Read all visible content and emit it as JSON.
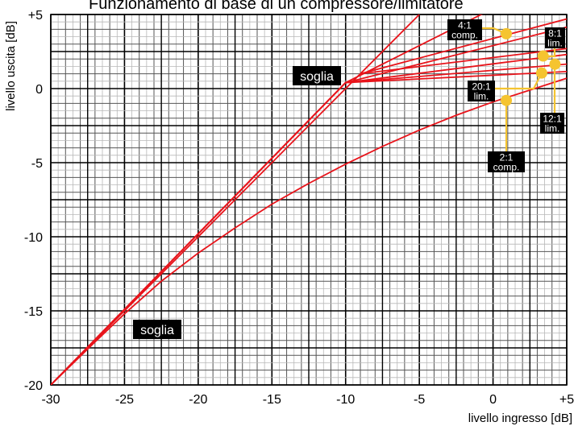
{
  "chart_data": {
    "type": "line",
    "title": "",
    "xlabel": "livello ingresso [dB]",
    "ylabel": "livello uscita [dB]",
    "xlim": [
      -30,
      5
    ],
    "ylim": [
      -20,
      5
    ],
    "grid": true,
    "x_ticks": [
      {
        "value": -30,
        "label": "-30"
      },
      {
        "value": -25,
        "label": "-25"
      },
      {
        "value": -20,
        "label": "-20"
      },
      {
        "value": -15,
        "label": "-15"
      },
      {
        "value": -10,
        "label": "-10"
      },
      {
        "value": -5,
        "label": "-5"
      },
      {
        "value": 0,
        "label": "0"
      },
      {
        "value": 5,
        "label": "+5"
      }
    ],
    "y_ticks": [
      {
        "value": -20,
        "label": "-20"
      },
      {
        "value": -15,
        "label": "-15"
      },
      {
        "value": -10,
        "label": "-10"
      },
      {
        "value": -5,
        "label": "-5"
      },
      {
        "value": 0,
        "label": "0"
      },
      {
        "value": 5,
        "label": "+5"
      }
    ],
    "line_color": "#e8141b",
    "marker_color": "#f5c430",
    "series": [
      {
        "id": "linear",
        "points": [
          [
            -30,
            -20
          ],
          [
            -5,
            5
          ]
        ]
      },
      {
        "id": "2:1 soft",
        "points": [
          [
            -30,
            -20
          ],
          [
            -27,
            -17.1
          ],
          [
            -25,
            -15.2
          ],
          [
            -22.5,
            -13
          ],
          [
            -20,
            -11.1
          ],
          [
            -17.5,
            -9.4
          ],
          [
            -15,
            -7.8
          ],
          [
            -12.5,
            -6.4
          ],
          [
            -10,
            -5.1
          ],
          [
            -7.5,
            -3.9
          ],
          [
            -5,
            -2.8
          ],
          [
            -2.5,
            -1.8
          ],
          [
            0,
            -0.9
          ],
          [
            2.5,
            -0.1
          ],
          [
            5,
            0.7
          ]
        ]
      },
      {
        "id": "2:1",
        "points": [
          [
            -30,
            -20
          ],
          [
            -10,
            0.4
          ],
          [
            5,
            7.9
          ]
        ]
      },
      {
        "id": "4:1",
        "points": [
          [
            -30,
            -20
          ],
          [
            -10,
            0.4
          ],
          [
            5,
            4.15
          ]
        ]
      },
      {
        "id": "8:1",
        "points": [
          [
            -30,
            -20
          ],
          [
            -10,
            0.4
          ],
          [
            5,
            2.3
          ]
        ]
      },
      {
        "id": "12:1",
        "points": [
          [
            -30,
            -20
          ],
          [
            -10,
            0.4
          ],
          [
            5,
            1.65
          ]
        ]
      },
      {
        "id": "20:1",
        "points": [
          [
            -30,
            -20
          ],
          [
            -10,
            0.4
          ],
          [
            5,
            1.15
          ]
        ]
      },
      {
        "id": "knee-4:1",
        "points": [
          [
            -9,
            1
          ],
          [
            5,
            4.7
          ]
        ]
      },
      {
        "id": "knee-8:1",
        "points": [
          [
            -9,
            1
          ],
          [
            5,
            2.7
          ]
        ]
      }
    ],
    "annotations": [
      {
        "id": "soglia-upper",
        "text": "soglia",
        "x": -13.5,
        "y": 1.1
      },
      {
        "id": "soglia-lower",
        "text": "soglia",
        "x": -22.8,
        "y": -16.25
      },
      {
        "id": "ratio-4-1",
        "text": "4:1\ncomp.",
        "x": 0.9,
        "y": 3.7
      },
      {
        "id": "ratio-8-1",
        "text": "8:1\nlim.",
        "x": 3.4,
        "y": 2.2
      },
      {
        "id": "ratio-12-1",
        "text": "12:1\nlim.",
        "x": 4.2,
        "y": 1.65
      },
      {
        "id": "ratio-20-1",
        "text": "20:1\nlim.",
        "x": 3.3,
        "y": 1.05
      },
      {
        "id": "ratio-2-1",
        "text": "2:1\ncomp.",
        "x": 0.9,
        "y": -0.8
      }
    ],
    "top_caption": "Funzionamento di base di un compressore/limitatore"
  }
}
